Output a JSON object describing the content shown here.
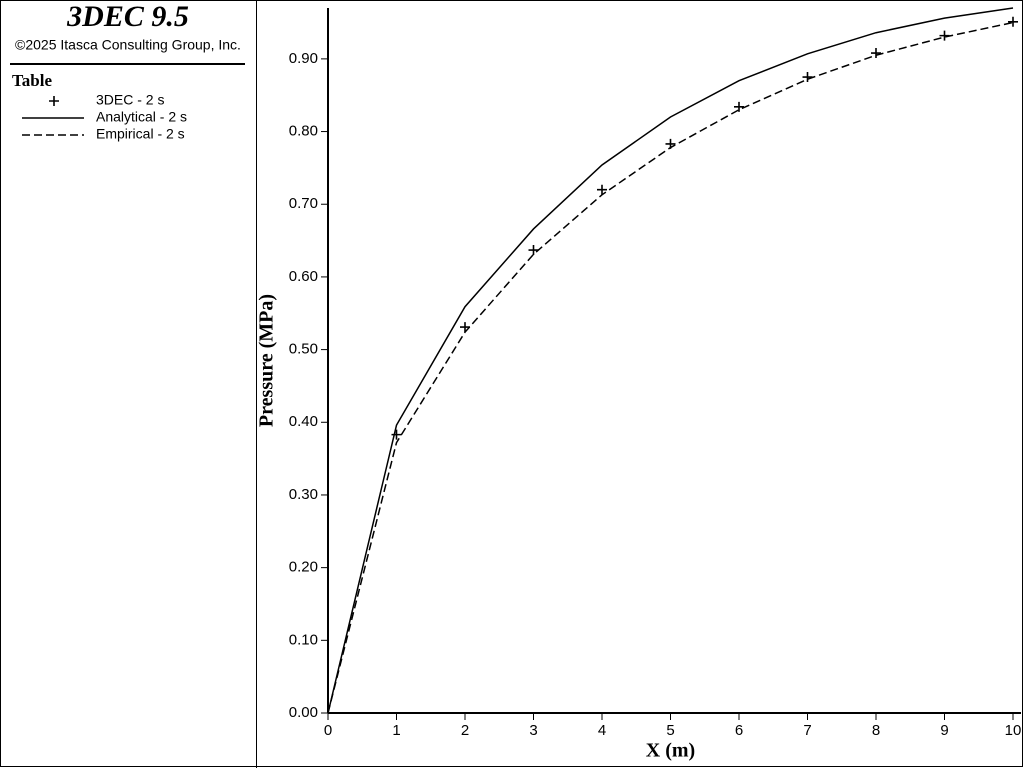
{
  "header": {
    "title": "3DEC 9.5",
    "copyright": "©2025 Itasca Consulting Group, Inc."
  },
  "legend_title": "Table",
  "chart_data": {
    "type": "line",
    "x_label": "X (m)",
    "y_label": "Pressure (MPa)",
    "x": [
      0,
      1,
      2,
      3,
      4,
      5,
      6,
      7,
      8,
      9,
      10
    ],
    "series": [
      {
        "name": "3DEC - 2 s",
        "color": "#000000",
        "style": "marker",
        "values": [
          null,
          0.383,
          0.531,
          0.637,
          0.72,
          0.783,
          0.834,
          0.875,
          0.908,
          0.932,
          0.951
        ]
      },
      {
        "name": "Analytical - 2 s",
        "color": "#000000",
        "style": "solid",
        "values": [
          0,
          0.396,
          0.559,
          0.666,
          0.754,
          0.82,
          0.87,
          0.907,
          0.936,
          0.956,
          0.97
        ]
      },
      {
        "name": "Empirical - 2 s",
        "color": "#000000",
        "style": "dashed",
        "values": [
          0,
          0.372,
          0.524,
          0.631,
          0.713,
          0.778,
          0.83,
          0.872,
          0.905,
          0.93,
          0.95
        ]
      }
    ],
    "xlim": [
      0,
      10
    ],
    "xticks": [
      0,
      1,
      2,
      3,
      4,
      5,
      6,
      7,
      8,
      9,
      10
    ],
    "ylim": [
      0,
      0.97
    ],
    "yticks": [
      {
        "value": 0,
        "label": "0.00"
      },
      {
        "value": 0.1,
        "label": "0.10"
      },
      {
        "value": 0.2,
        "label": "0.20"
      },
      {
        "value": 0.3,
        "label": "0.30"
      },
      {
        "value": 0.4,
        "label": "0.40"
      },
      {
        "value": 0.5,
        "label": "0.50"
      },
      {
        "value": 0.6,
        "label": "0.60"
      },
      {
        "value": 0.7,
        "label": "0.70"
      },
      {
        "value": 0.8,
        "label": "0.80"
      },
      {
        "value": 0.9,
        "label": "0.90"
      }
    ]
  }
}
